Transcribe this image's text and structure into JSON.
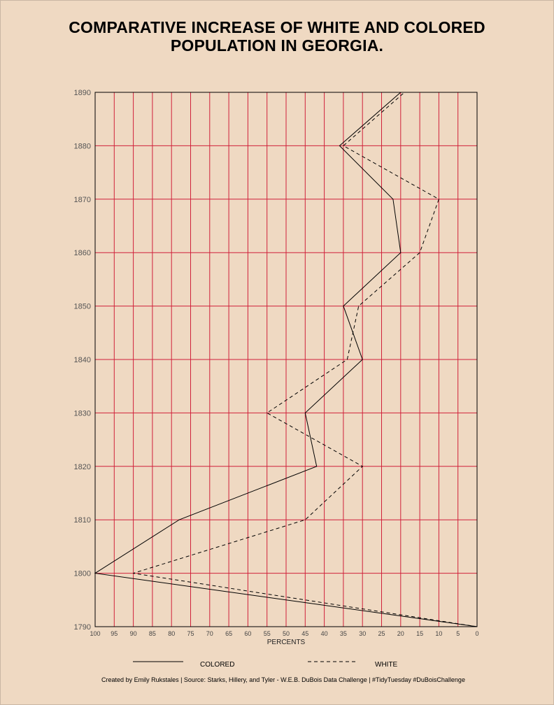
{
  "chart_data": {
    "type": "line",
    "title_lines": [
      "COMPARATIVE INCREASE OF WHITE AND COLORED",
      "POPULATION IN GEORGIA."
    ],
    "xlabel": "PERCENTS",
    "ylabel": "",
    "xlim": [
      100,
      0
    ],
    "ylim": [
      1790,
      1890
    ],
    "x_ticks": [
      100,
      95,
      90,
      85,
      80,
      75,
      70,
      65,
      60,
      55,
      50,
      45,
      40,
      35,
      30,
      25,
      20,
      15,
      10,
      5,
      0
    ],
    "y_ticks": [
      1790,
      1800,
      1810,
      1820,
      1830,
      1840,
      1850,
      1860,
      1870,
      1880,
      1890
    ],
    "grid": true,
    "legend_position": "bottom",
    "colors": {
      "grid": "#d0203a",
      "line": "#000000",
      "background": "#efd9c2"
    },
    "series": [
      {
        "name": "COLORED",
        "style": "solid",
        "points": [
          {
            "year": 1790,
            "percent": 0
          },
          {
            "year": 1800,
            "percent": 100
          },
          {
            "year": 1810,
            "percent": 78
          },
          {
            "year": 1820,
            "percent": 42
          },
          {
            "year": 1830,
            "percent": 45
          },
          {
            "year": 1840,
            "percent": 30
          },
          {
            "year": 1850,
            "percent": 35
          },
          {
            "year": 1860,
            "percent": 20
          },
          {
            "year": 1870,
            "percent": 22
          },
          {
            "year": 1880,
            "percent": 36
          },
          {
            "year": 1890,
            "percent": 20
          }
        ]
      },
      {
        "name": "WHITE",
        "style": "dashed",
        "points": [
          {
            "year": 1790,
            "percent": 0
          },
          {
            "year": 1800,
            "percent": 90
          },
          {
            "year": 1810,
            "percent": 45
          },
          {
            "year": 1820,
            "percent": 30
          },
          {
            "year": 1830,
            "percent": 55
          },
          {
            "year": 1840,
            "percent": 34
          },
          {
            "year": 1850,
            "percent": 31
          },
          {
            "year": 1860,
            "percent": 15
          },
          {
            "year": 1870,
            "percent": 10
          },
          {
            "year": 1880,
            "percent": 35
          },
          {
            "year": 1890,
            "percent": 19
          }
        ]
      }
    ]
  },
  "caption": "Created by Emily Rukstales | Source: Starks, Hillery, and Tyler - W.E.B. DuBois Data Challenge | #TidyTuesday #DuBoisChallenge"
}
